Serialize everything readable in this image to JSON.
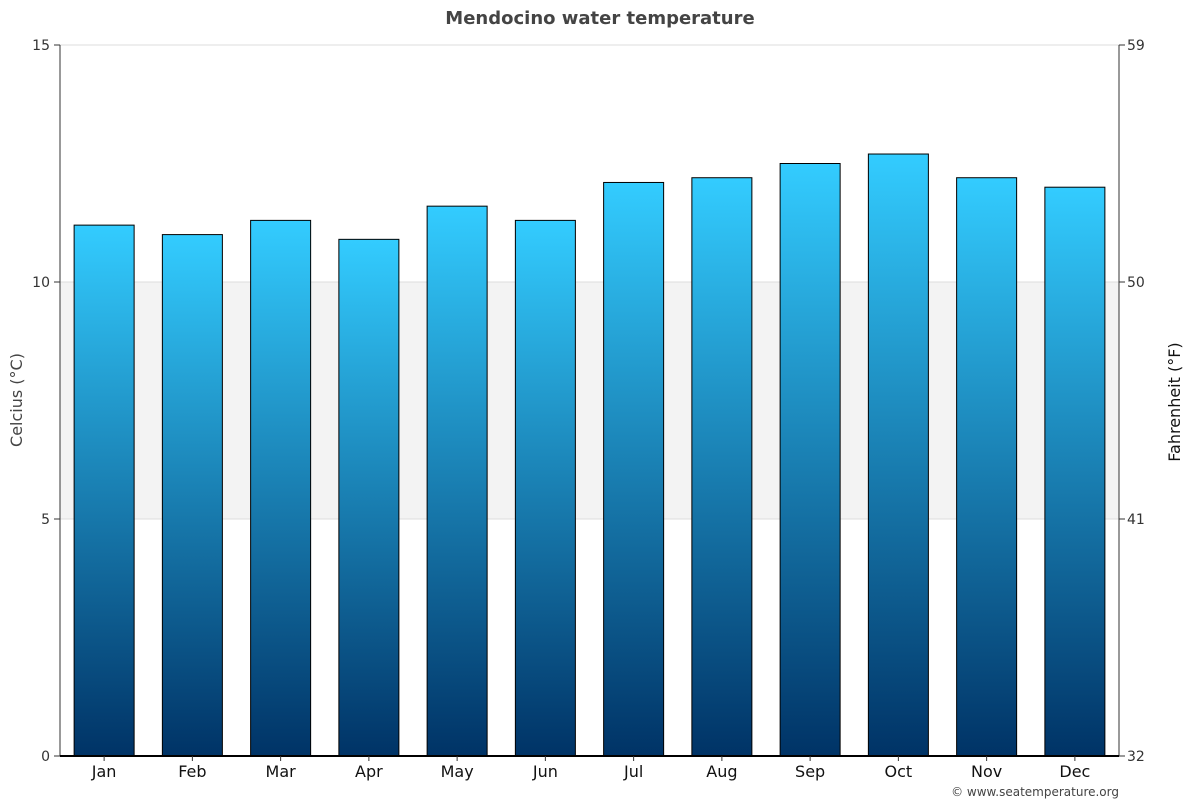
{
  "chart_data": {
    "type": "bar",
    "title": "Mendocino water temperature",
    "categories": [
      "Jan",
      "Feb",
      "Mar",
      "Apr",
      "May",
      "Jun",
      "Jul",
      "Aug",
      "Sep",
      "Oct",
      "Nov",
      "Dec"
    ],
    "values": [
      11.2,
      11.0,
      11.3,
      10.9,
      11.6,
      11.3,
      12.1,
      12.2,
      12.5,
      12.7,
      12.2,
      12.0
    ],
    "ylabel": "Celcius (°C)",
    "ylabel_right": "Fahrenheit (°F)",
    "ylim": [
      0,
      15
    ],
    "yticks": [
      "0",
      "5",
      "10",
      "15"
    ],
    "yticks_right": [
      "32",
      "41",
      "50",
      "59"
    ],
    "grid": true,
    "shaded_band": [
      5,
      10
    ],
    "colors": {
      "bar_top": "#33ccff",
      "bar_bottom": "#003366",
      "band": "#f3f3f3"
    }
  },
  "credit": "© www.seatemperature.org"
}
